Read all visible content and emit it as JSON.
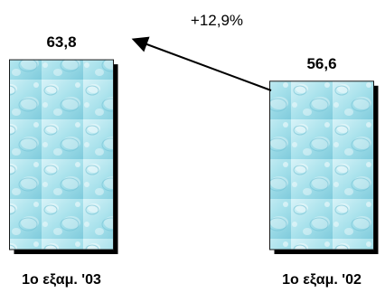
{
  "chart_data": {
    "type": "bar",
    "categories": [
      "1ο εξαμ. '03",
      "1ο εξαμ. '02"
    ],
    "values": [
      63.8,
      56.6
    ],
    "data_labels": [
      "63,8",
      "56,6"
    ],
    "annotation": "+12,9%",
    "ylim": [
      0,
      70
    ],
    "grid": false,
    "bar_fill": "water-drops texture (light cyan)",
    "colors": {
      "bar_light": "#d8f3f8",
      "bar_mid": "#a9e2ec",
      "bar_dark": "#7fcbdc",
      "bar_border": "#1a1a1a",
      "bar_shadow": "#000000"
    }
  }
}
